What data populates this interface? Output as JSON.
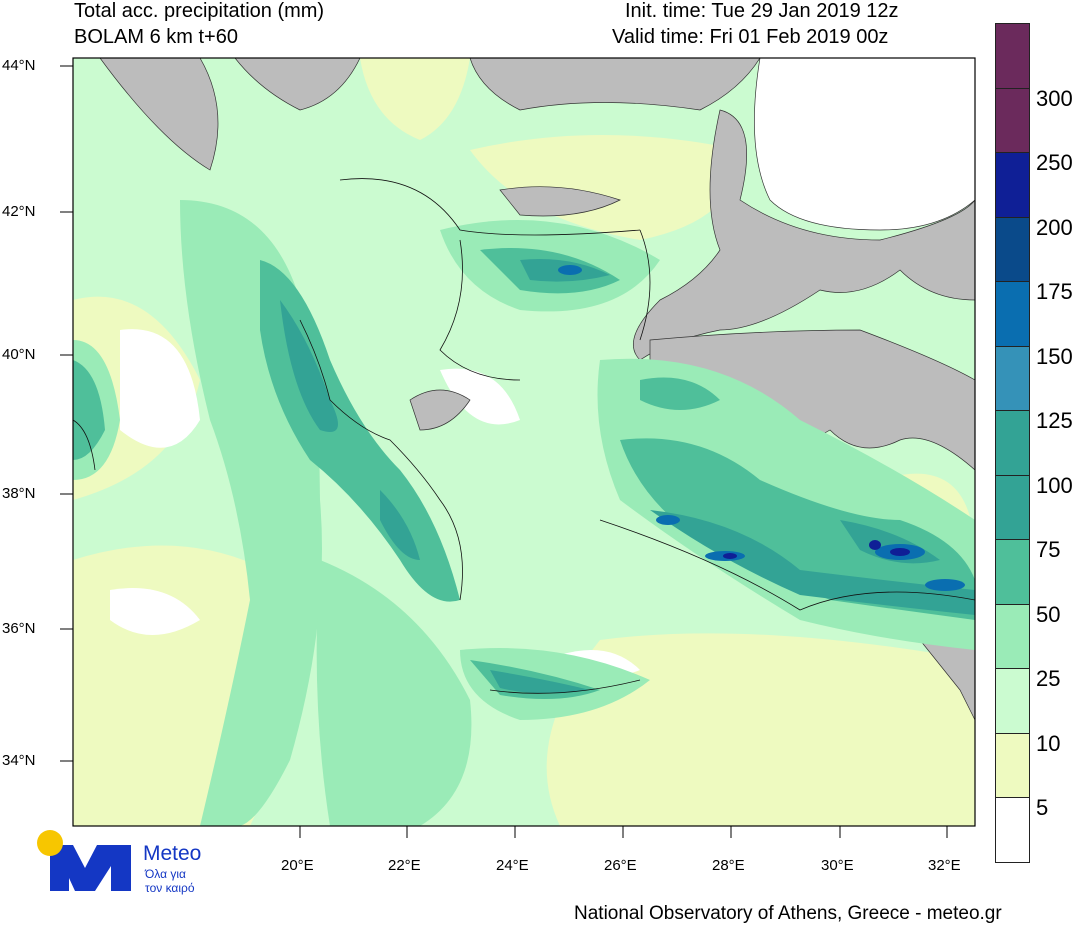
{
  "header": {
    "title_line1": "Total acc. precipitation (mm)",
    "title_line2": "BOLAM 6 km t+60",
    "init_time": "Init. time: Tue 29 Jan 2019 12z",
    "valid_time": "Valid time: Fri 01 Feb 2019 00z"
  },
  "map": {
    "lat_ticks": [
      "44°N",
      "42°N",
      "40°N",
      "38°N",
      "36°N",
      "34°N"
    ],
    "lon_ticks": [
      "20°E",
      "22°E",
      "24°E",
      "26°E",
      "28°E",
      "30°E",
      "32°E"
    ]
  },
  "colorbar": {
    "labels": [
      "300",
      "250",
      "200",
      "175",
      "150",
      "125",
      "100",
      "75",
      "50",
      "25",
      "10",
      "5"
    ],
    "colors": [
      "#6b2a5c",
      "#6b2a5c",
      "#0f1f96",
      "#0a4a8a",
      "#0a6eb0",
      "#3592b8",
      "#33a395",
      "#33a395",
      "#4fbf9a",
      "#9aebb7",
      "#cbfbd0",
      "#eefac0",
      "#ffffff"
    ]
  },
  "logo": {
    "name": "Meteo",
    "tagline_line1": "Όλα για",
    "tagline_line2": "τον καιρό",
    "brand_color": "#1437c4",
    "sun_color": "#f7c600"
  },
  "footer": {
    "credit": "National Observatory of Athens, Greece - meteo.gr"
  }
}
